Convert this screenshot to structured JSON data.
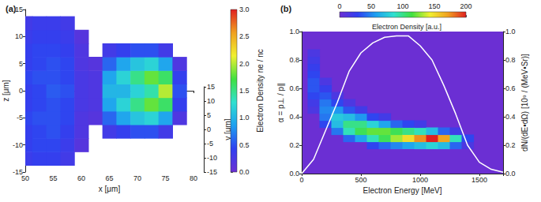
{
  "chart_data": [
    {
      "type": "heatmap",
      "title": "(a)",
      "x_label": "x [μm]",
      "y_label": "z [μm]",
      "xlim": [
        50,
        80
      ],
      "xticks": [
        50,
        55,
        60,
        65,
        70,
        75,
        80
      ],
      "ylim": [
        -15,
        15
      ],
      "yticks": [
        -15,
        -10,
        -5,
        0,
        5,
        10,
        15
      ],
      "depth_axis": {
        "label": "y [μm]",
        "lim": [
          -15,
          15
        ],
        "ticks": [
          -15,
          -10,
          -5,
          0,
          5,
          10,
          15
        ]
      },
      "colorbar": {
        "label": "Electron Density ne / nc",
        "lim": [
          0,
          3
        ],
        "ticks": [
          {
            "value": 0,
            "label": "0.0"
          },
          {
            "value": 0.5,
            "label": "0.5"
          },
          {
            "value": 1,
            "label": "1.0"
          },
          {
            "value": 1.5,
            "label": "1.5"
          },
          {
            "value": 2,
            "label": "2.0"
          },
          {
            "value": 2.5,
            "label": "2.5"
          },
          {
            "value": 3,
            "label": "3.0"
          }
        ]
      },
      "cells": [
        [
          50,
          -12.5,
          0.35
        ],
        [
          50,
          -10,
          0.4
        ],
        [
          50,
          -7.5,
          0.4
        ],
        [
          50,
          -5,
          0.45
        ],
        [
          50,
          -2.5,
          0.4
        ],
        [
          50,
          0,
          0.4
        ],
        [
          50,
          2.5,
          0.45
        ],
        [
          50,
          5,
          0.4
        ],
        [
          50,
          7.5,
          0.4
        ],
        [
          50,
          10,
          0.35
        ],
        [
          50,
          12.5,
          0.3
        ],
        [
          52.5,
          -12.5,
          0.4
        ],
        [
          52.5,
          -10,
          0.45
        ],
        [
          52.5,
          -7.5,
          0.45
        ],
        [
          52.5,
          -5,
          0.5
        ],
        [
          52.5,
          -2.5,
          0.45
        ],
        [
          52.5,
          0,
          0.45
        ],
        [
          52.5,
          2.5,
          0.5
        ],
        [
          52.5,
          5,
          0.45
        ],
        [
          52.5,
          7.5,
          0.45
        ],
        [
          52.5,
          10,
          0.4
        ],
        [
          52.5,
          12.5,
          0.35
        ],
        [
          55,
          -12.5,
          0.4
        ],
        [
          55,
          -10,
          0.45
        ],
        [
          55,
          -7.5,
          0.5
        ],
        [
          55,
          -5,
          0.5
        ],
        [
          55,
          -2.5,
          0.5
        ],
        [
          55,
          0,
          0.55
        ],
        [
          55,
          2.5,
          0.5
        ],
        [
          55,
          5,
          0.5
        ],
        [
          55,
          7.5,
          0.45
        ],
        [
          55,
          10,
          0.4
        ],
        [
          55,
          12.5,
          0.35
        ],
        [
          57.5,
          -12.5,
          0.3
        ],
        [
          57.5,
          -10,
          0.35
        ],
        [
          57.5,
          -7.5,
          0.4
        ],
        [
          57.5,
          -5,
          0.45
        ],
        [
          57.5,
          -2.5,
          0.45
        ],
        [
          57.5,
          0,
          0.5
        ],
        [
          57.5,
          2.5,
          0.45
        ],
        [
          57.5,
          5,
          0.45
        ],
        [
          57.5,
          7.5,
          0.4
        ],
        [
          57.5,
          10,
          0.35
        ],
        [
          57.5,
          12.5,
          0.3
        ],
        [
          60,
          -10,
          0.15
        ],
        [
          60,
          -7.5,
          0.2
        ],
        [
          60,
          -5,
          0.2
        ],
        [
          60,
          -2.5,
          0.25
        ],
        [
          60,
          0,
          0.25
        ],
        [
          60,
          2.5,
          0.25
        ],
        [
          60,
          5,
          0.2
        ],
        [
          60,
          7.5,
          0.2
        ],
        [
          60,
          10,
          0.15
        ],
        [
          62.5,
          -5,
          0.15
        ],
        [
          62.5,
          -2.5,
          0.2
        ],
        [
          62.5,
          0,
          0.2
        ],
        [
          62.5,
          2.5,
          0.2
        ],
        [
          62.5,
          5,
          0.15
        ],
        [
          65,
          -7.5,
          0.3
        ],
        [
          65,
          -5,
          0.6
        ],
        [
          65,
          -2.5,
          0.9
        ],
        [
          65,
          0,
          1.0
        ],
        [
          65,
          2.5,
          0.9
        ],
        [
          65,
          5,
          0.6
        ],
        [
          65,
          7.5,
          0.3
        ],
        [
          67.5,
          -7.5,
          0.4
        ],
        [
          67.5,
          -5,
          0.9
        ],
        [
          67.5,
          -2.5,
          1.2
        ],
        [
          67.5,
          0,
          1.0
        ],
        [
          67.5,
          2.5,
          1.2
        ],
        [
          67.5,
          5,
          0.9
        ],
        [
          67.5,
          7.5,
          0.4
        ],
        [
          70,
          -7.5,
          0.5
        ],
        [
          70,
          -5,
          1.1
        ],
        [
          70,
          -2.5,
          1.5
        ],
        [
          70,
          0,
          1.2
        ],
        [
          70,
          2.5,
          1.5
        ],
        [
          70,
          5,
          1.1
        ],
        [
          70,
          7.5,
          0.5
        ],
        [
          72.5,
          -7.5,
          0.5
        ],
        [
          72.5,
          -5,
          1.2
        ],
        [
          72.5,
          -2.5,
          1.8
        ],
        [
          72.5,
          0,
          1.4
        ],
        [
          72.5,
          2.5,
          1.8
        ],
        [
          72.5,
          5,
          1.2
        ],
        [
          72.5,
          7.5,
          0.5
        ],
        [
          75,
          -7.5,
          0.3
        ],
        [
          75,
          -5,
          0.9
        ],
        [
          75,
          -2.5,
          1.6
        ],
        [
          75,
          0,
          2.0
        ],
        [
          75,
          2.5,
          1.6
        ],
        [
          75,
          5,
          0.9
        ],
        [
          75,
          7.5,
          0.3
        ],
        [
          77.5,
          -5,
          0.2
        ],
        [
          77.5,
          -2.5,
          0.4
        ],
        [
          77.5,
          0,
          0.5
        ],
        [
          77.5,
          2.5,
          0.4
        ],
        [
          77.5,
          5,
          0.2
        ]
      ]
    },
    {
      "type": "heatmap",
      "title": "(b)",
      "x_label": "Electron Energy [MeV]",
      "y_label": "α = p⊥ / p∥",
      "y2_label": "dN/(dE•dΩ) [10⁹ / (MeV•Sr)]",
      "xlim": [
        0,
        1700
      ],
      "xticks": [
        0,
        500,
        1000,
        1500
      ],
      "ylim": [
        0,
        1
      ],
      "yticks": [
        {
          "value": 0,
          "label": "0.0"
        },
        {
          "value": 0.2,
          "label": "0.2"
        },
        {
          "value": 0.4,
          "label": "0.4"
        },
        {
          "value": 0.6,
          "label": "0.6"
        },
        {
          "value": 0.8,
          "label": "0.8"
        },
        {
          "value": 1,
          "label": "1.0"
        }
      ],
      "y2lim": [
        0,
        1
      ],
      "y2ticks": [
        {
          "value": 0,
          "label": "0.0"
        },
        {
          "value": 0.2,
          "label": "0.2"
        },
        {
          "value": 0.4,
          "label": "0.4"
        },
        {
          "value": 0.6,
          "label": "0.6"
        },
        {
          "value": 0.8,
          "label": "0.8"
        },
        {
          "value": 1,
          "label": "1.0"
        }
      ],
      "colorbar": {
        "label": "Electron Density [a.u.]",
        "lim": [
          0,
          200
        ],
        "ticks": [
          0,
          50,
          100,
          150,
          200
        ]
      },
      "cells": [
        [
          100,
          0.45,
          15
        ],
        [
          100,
          0.5,
          20
        ],
        [
          100,
          0.55,
          30
        ],
        [
          100,
          0.6,
          35
        ],
        [
          100,
          0.65,
          35
        ],
        [
          100,
          0.7,
          30
        ],
        [
          100,
          0.75,
          25
        ],
        [
          100,
          0.8,
          20
        ],
        [
          100,
          0.85,
          15
        ],
        [
          200,
          0.35,
          30
        ],
        [
          200,
          0.4,
          45
        ],
        [
          200,
          0.45,
          50
        ],
        [
          200,
          0.5,
          45
        ],
        [
          200,
          0.55,
          35
        ],
        [
          200,
          0.6,
          25
        ],
        [
          200,
          0.65,
          15
        ],
        [
          300,
          0.3,
          45
        ],
        [
          300,
          0.35,
          70
        ],
        [
          300,
          0.4,
          75
        ],
        [
          300,
          0.45,
          55
        ],
        [
          300,
          0.5,
          30
        ],
        [
          300,
          0.55,
          15
        ],
        [
          400,
          0.25,
          40
        ],
        [
          400,
          0.3,
          90
        ],
        [
          400,
          0.35,
          100
        ],
        [
          400,
          0.4,
          70
        ],
        [
          400,
          0.45,
          35
        ],
        [
          400,
          0.5,
          15
        ],
        [
          500,
          0.25,
          60
        ],
        [
          500,
          0.3,
          110
        ],
        [
          500,
          0.35,
          100
        ],
        [
          500,
          0.4,
          55
        ],
        [
          500,
          0.45,
          20
        ],
        [
          600,
          0.2,
          30
        ],
        [
          600,
          0.25,
          90
        ],
        [
          600,
          0.3,
          120
        ],
        [
          600,
          0.35,
          80
        ],
        [
          600,
          0.4,
          30
        ],
        [
          700,
          0.2,
          40
        ],
        [
          700,
          0.25,
          110
        ],
        [
          700,
          0.3,
          120
        ],
        [
          700,
          0.35,
          60
        ],
        [
          700,
          0.4,
          20
        ],
        [
          800,
          0.2,
          50
        ],
        [
          800,
          0.25,
          130
        ],
        [
          800,
          0.3,
          110
        ],
        [
          800,
          0.35,
          40
        ],
        [
          900,
          0.2,
          60
        ],
        [
          900,
          0.25,
          150
        ],
        [
          900,
          0.3,
          100
        ],
        [
          900,
          0.35,
          30
        ],
        [
          1000,
          0.2,
          70
        ],
        [
          1000,
          0.25,
          175
        ],
        [
          1000,
          0.3,
          90
        ],
        [
          1000,
          0.35,
          20
        ],
        [
          1100,
          0.2,
          80
        ],
        [
          1100,
          0.25,
          200
        ],
        [
          1100,
          0.3,
          70
        ],
        [
          1200,
          0.2,
          70
        ],
        [
          1200,
          0.25,
          170
        ],
        [
          1200,
          0.3,
          40
        ],
        [
          1300,
          0.2,
          40
        ],
        [
          1300,
          0.25,
          90
        ],
        [
          1300,
          0.3,
          20
        ],
        [
          1400,
          0.2,
          15
        ],
        [
          1400,
          0.25,
          30
        ]
      ],
      "series": [
        {
          "type": "line",
          "axis": "y2",
          "color": "#ffffff",
          "x": [
            0,
            100,
            200,
            300,
            400,
            500,
            600,
            700,
            800,
            900,
            1000,
            1100,
            1200,
            1300,
            1400,
            1500,
            1600,
            1700
          ],
          "values": [
            0,
            0.1,
            0.3,
            0.5,
            0.72,
            0.85,
            0.92,
            0.96,
            0.97,
            0.97,
            0.9,
            0.8,
            0.62,
            0.42,
            0.2,
            0.08,
            0.03,
            0.01
          ]
        }
      ]
    }
  ]
}
